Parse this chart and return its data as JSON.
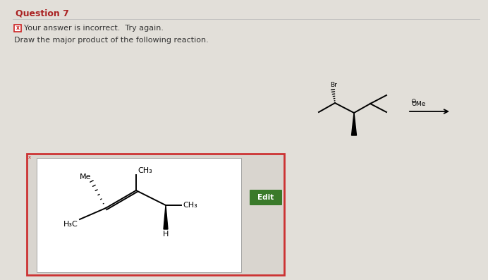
{
  "bg_color": "#cccac5",
  "panel_bg": "#e2dfd9",
  "title": "Question 7",
  "title_color": "#aa2222",
  "incorrect_text": "Your answer is incorrect.  Try again.",
  "draw_text": "Draw the major product of the following reaction.",
  "reagent_label_top": "⊖",
  "reagent_label": "OMe",
  "edit_btn_color": "#3a7a2a",
  "edit_btn_text": "Edit",
  "edit_btn_text_color": "#ffffff",
  "figsize": [
    6.92,
    3.97
  ],
  "dpi": 100
}
